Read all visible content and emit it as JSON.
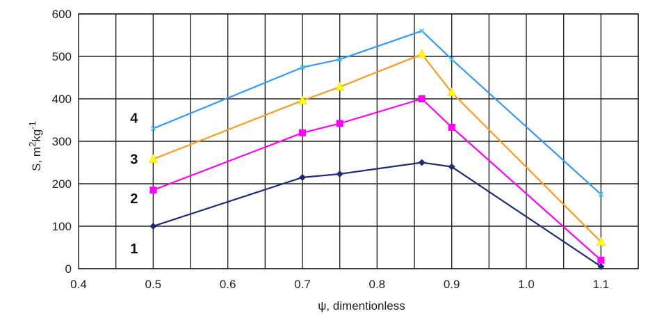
{
  "chart_data": {
    "type": "line",
    "xlabel": "ψ, dimentionless",
    "ylabel": "S, m²kg⁻¹",
    "ylabel_parts": {
      "base": "S, m",
      "sup1": "2",
      "mid": "kg",
      "sup2": "-1"
    },
    "xlim": [
      0.4,
      1.15
    ],
    "ylim": [
      0,
      600
    ],
    "x_ticks": [
      0.4,
      0.5,
      0.6,
      0.7,
      0.8,
      0.9,
      1.0,
      1.1
    ],
    "x_tick_labels": [
      "0.4",
      "0.5",
      "0.6",
      "0.7",
      "0.8",
      "0.9",
      "1.0",
      "1.1"
    ],
    "y_ticks": [
      0,
      100,
      200,
      300,
      400,
      500,
      600
    ],
    "y_tick_labels": [
      "0",
      "100",
      "200",
      "300",
      "400",
      "500",
      "600"
    ],
    "x_gridlines": [
      0.45,
      0.5,
      0.55,
      0.6,
      0.65,
      0.7,
      0.75,
      0.8,
      0.85,
      0.9,
      0.95,
      1.0,
      1.05,
      1.1,
      1.15
    ],
    "grid": true,
    "series": [
      {
        "name": "1",
        "color": "#1f2a7a",
        "marker": "diamond",
        "x": [
          0.5,
          0.7,
          0.75,
          0.86,
          0.9,
          1.1
        ],
        "y": [
          100,
          215,
          223,
          250,
          240,
          5
        ]
      },
      {
        "name": "2",
        "color": "#ff00ff",
        "marker": "square",
        "x": [
          0.5,
          0.7,
          0.75,
          0.86,
          0.9,
          1.1
        ],
        "y": [
          185,
          320,
          342,
          400,
          333,
          20
        ]
      },
      {
        "name": "3",
        "color": "#ff9a1e",
        "marker": "triangle",
        "x": [
          0.5,
          0.7,
          0.75,
          0.86,
          0.9,
          1.1
        ],
        "y": [
          258,
          396,
          428,
          505,
          415,
          63
        ]
      },
      {
        "name": "4",
        "color": "#3399ff",
        "marker": "x",
        "x": [
          0.5,
          0.7,
          0.75,
          0.86,
          0.9,
          1.1
        ],
        "y": [
          330,
          474,
          493,
          560,
          493,
          175
        ]
      }
    ],
    "series_labels": [
      "4",
      "3",
      "2",
      "1"
    ]
  }
}
